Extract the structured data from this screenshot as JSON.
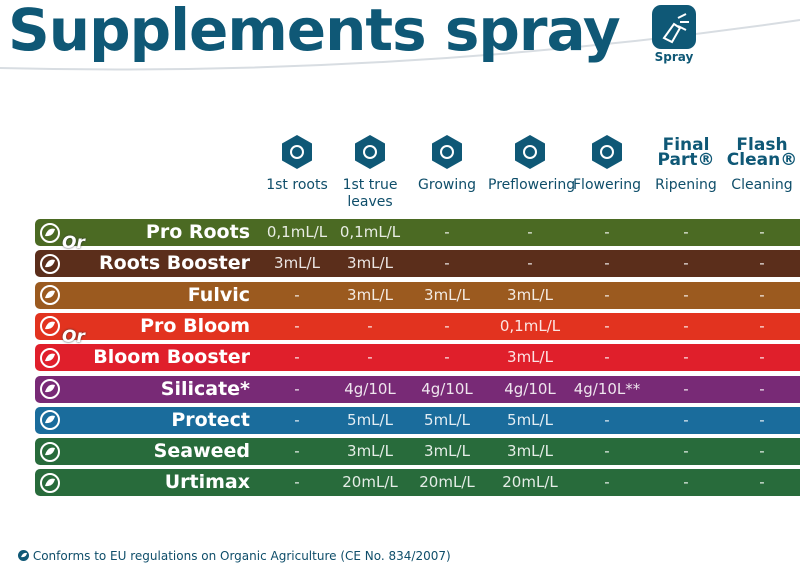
{
  "header": {
    "title": "Supplements spray",
    "icon_label": "Spray"
  },
  "columns": [
    {
      "label": "1st roots"
    },
    {
      "label": "1st true leaves"
    },
    {
      "label": "Growing"
    },
    {
      "label": "Preflowering"
    },
    {
      "label": "Flowering"
    },
    {
      "brand": "Final Part®",
      "label": "Ripening"
    },
    {
      "brand": "Flash Clean®",
      "label": "Cleaning"
    }
  ],
  "rows": [
    {
      "name": "Pro Roots",
      "color": "#4b6a23",
      "or_label": "Or",
      "cells": [
        "0,1mL/L",
        "0,1mL/L",
        "-",
        "-",
        "-",
        "-",
        "-"
      ]
    },
    {
      "name": "Roots Booster",
      "color": "#5b2e1b",
      "cells": [
        "3mL/L",
        "3mL/L",
        "-",
        "-",
        "-",
        "-",
        "-"
      ]
    },
    {
      "name": "Fulvic",
      "color": "#9b5a1f",
      "cells": [
        "-",
        "3mL/L",
        "3mL/L",
        "3mL/L",
        "-",
        "-",
        "-"
      ]
    },
    {
      "name": "Pro Bloom",
      "color": "#e2331f",
      "or_label": "Or",
      "cells": [
        "-",
        "-",
        "-",
        "0,1mL/L",
        "-",
        "-",
        "-"
      ]
    },
    {
      "name": "Bloom Booster",
      "color": "#e01f2b",
      "cells": [
        "-",
        "-",
        "-",
        "3mL/L",
        "-",
        "-",
        "-"
      ]
    },
    {
      "name": "Silicate*",
      "color": "#782a76",
      "cells": [
        "-",
        "4g/10L",
        "4g/10L",
        "4g/10L",
        "4g/10L**",
        "-",
        "-"
      ]
    },
    {
      "name": "Protect",
      "color": "#1a6c9c",
      "cells": [
        "-",
        "5mL/L",
        "5mL/L",
        "5mL/L",
        "-",
        "-",
        "-"
      ]
    },
    {
      "name": "Seaweed",
      "color": "#286b3b",
      "cells": [
        "-",
        "3mL/L",
        "3mL/L",
        "3mL/L",
        "-",
        "-",
        "-"
      ]
    },
    {
      "name": "Urtimax",
      "color": "#286b3b",
      "cells": [
        "-",
        "20mL/L",
        "20mL/L",
        "20mL/L",
        "-",
        "-",
        "-"
      ]
    }
  ],
  "footnote": "Conforms to EU regulations on Organic Agriculture (CE No. 834/2007)"
}
